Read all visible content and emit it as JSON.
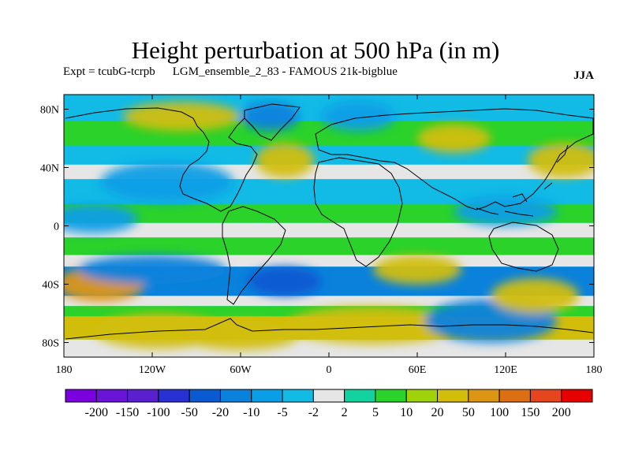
{
  "title": "Height perturbation at 500 hPa (in m)",
  "subtitle_left": "Expt = tcubG-tcrpb",
  "subtitle_mid": "LGM_ensemble_2_83 - FAMOUS 21k-bigblue",
  "season": "JJA",
  "map": {
    "lon_range": [
      -180,
      180
    ],
    "lat_range": [
      -90,
      90
    ],
    "lat_ticks": [
      {
        "value": 80,
        "label": "80N"
      },
      {
        "value": 40,
        "label": "40N"
      },
      {
        "value": 0,
        "label": "0"
      },
      {
        "value": -40,
        "label": "40S"
      },
      {
        "value": -80,
        "label": "80S"
      }
    ],
    "lon_ticks": [
      {
        "value": -180,
        "label": "180"
      },
      {
        "value": -120,
        "label": "120W"
      },
      {
        "value": -60,
        "label": "60W"
      },
      {
        "value": 0,
        "label": "0"
      },
      {
        "value": 60,
        "label": "60E"
      },
      {
        "value": 120,
        "label": "120E"
      },
      {
        "value": 180,
        "label": "180"
      }
    ]
  },
  "colorbar": {
    "colors": [
      "#7a00e0",
      "#6a14d8",
      "#5a20cf",
      "#2832d2",
      "#0a5ad2",
      "#0a82dc",
      "#0a9ee6",
      "#12bae6",
      "#e6e6e6",
      "#12d2a0",
      "#2ad22a",
      "#a0d20a",
      "#d2be0a",
      "#dc9614",
      "#dc6e14",
      "#e6461e",
      "#e60000"
    ],
    "labels": [
      "-200",
      "-150",
      "-100",
      "-50",
      "-20",
      "-10",
      "-5",
      "-2",
      "2",
      "5",
      "10",
      "20",
      "50",
      "100",
      "150",
      "200"
    ]
  },
  "field_blobs": [
    {
      "lon": -155,
      "lat": -40,
      "value": 50,
      "rlon": 30,
      "rlat": 12
    },
    {
      "lon": -115,
      "lat": -72,
      "value": 20,
      "rlon": 45,
      "rlat": 12
    },
    {
      "lon": -60,
      "lat": -75,
      "value": 20,
      "rlon": 40,
      "rlat": 10
    },
    {
      "lon": -120,
      "lat": -30,
      "value": -20,
      "rlon": 50,
      "rlat": 10
    },
    {
      "lon": -30,
      "lat": -38,
      "value": -50,
      "rlon": 25,
      "rlat": 10
    },
    {
      "lon": 30,
      "lat": -68,
      "value": 20,
      "rlon": 60,
      "rlat": 13
    },
    {
      "lon": 110,
      "lat": -65,
      "value": -20,
      "rlon": 45,
      "rlat": 15
    },
    {
      "lon": 140,
      "lat": -48,
      "value": 20,
      "rlon": 30,
      "rlat": 12
    },
    {
      "lon": 60,
      "lat": -30,
      "value": 20,
      "rlon": 30,
      "rlat": 10
    },
    {
      "lon": -100,
      "lat": 75,
      "value": 20,
      "rlon": 40,
      "rlat": 10
    },
    {
      "lon": -30,
      "lat": 45,
      "value": 20,
      "rlon": 20,
      "rlat": 12
    },
    {
      "lon": -110,
      "lat": 30,
      "value": -10,
      "rlon": 45,
      "rlat": 14
    },
    {
      "lon": -40,
      "lat": 75,
      "value": -20,
      "rlon": 20,
      "rlat": 10
    },
    {
      "lon": 20,
      "lat": 75,
      "value": -10,
      "rlon": 25,
      "rlat": 10
    },
    {
      "lon": 85,
      "lat": 60,
      "value": 20,
      "rlon": 25,
      "rlat": 10
    },
    {
      "lon": 160,
      "lat": 45,
      "value": 20,
      "rlon": 25,
      "rlat": 12
    },
    {
      "lon": 120,
      "lat": 10,
      "value": -10,
      "rlon": 35,
      "rlat": 10
    },
    {
      "lon": -160,
      "lat": 5,
      "value": -10,
      "rlon": 30,
      "rlat": 10
    }
  ]
}
